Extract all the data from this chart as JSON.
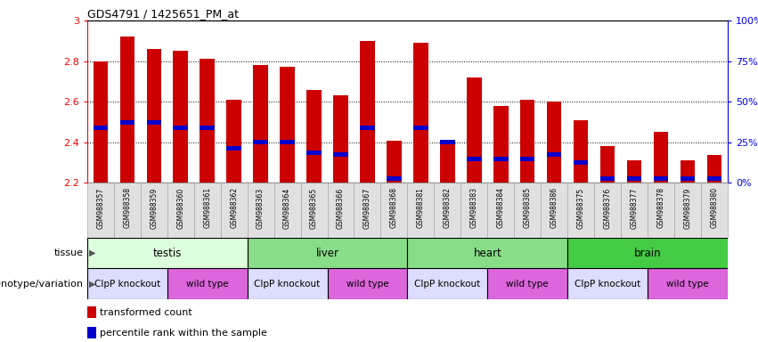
{
  "title": "GDS4791 / 1425651_PM_at",
  "samples": [
    "GSM988357",
    "GSM988358",
    "GSM988359",
    "GSM988360",
    "GSM988361",
    "GSM988362",
    "GSM988363",
    "GSM988364",
    "GSM988365",
    "GSM988366",
    "GSM988367",
    "GSM988368",
    "GSM988381",
    "GSM988382",
    "GSM988383",
    "GSM988384",
    "GSM988385",
    "GSM988386",
    "GSM988375",
    "GSM988376",
    "GSM988377",
    "GSM988378",
    "GSM988379",
    "GSM988380"
  ],
  "bar_values": [
    2.8,
    2.92,
    2.86,
    2.85,
    2.81,
    2.61,
    2.78,
    2.77,
    2.66,
    2.63,
    2.9,
    2.41,
    2.89,
    2.4,
    2.72,
    2.58,
    2.61,
    2.6,
    2.51,
    2.38,
    2.31,
    2.45,
    2.31,
    2.34
  ],
  "blue_values": [
    2.47,
    2.5,
    2.5,
    2.47,
    2.47,
    2.37,
    2.4,
    2.4,
    2.35,
    2.34,
    2.47,
    2.22,
    2.47,
    2.4,
    2.32,
    2.32,
    2.32,
    2.34,
    2.3,
    2.22,
    2.22,
    2.22,
    2.22,
    2.22
  ],
  "ymin": 2.2,
  "ymax": 3.0,
  "bar_color": "#cc0000",
  "blue_color": "#0000cc",
  "tissue_data": [
    {
      "start": 0,
      "end": 5,
      "label": "testis",
      "color": "#ddffdd"
    },
    {
      "start": 6,
      "end": 11,
      "label": "liver",
      "color": "#88dd88"
    },
    {
      "start": 12,
      "end": 17,
      "label": "heart",
      "color": "#88dd88"
    },
    {
      "start": 18,
      "end": 23,
      "label": "brain",
      "color": "#44cc44"
    }
  ],
  "geno_data": [
    {
      "start": 0,
      "end": 2,
      "label": "ClpP knockout",
      "color": "#ddddff"
    },
    {
      "start": 3,
      "end": 5,
      "label": "wild type",
      "color": "#dd66dd"
    },
    {
      "start": 6,
      "end": 8,
      "label": "ClpP knockout",
      "color": "#ddddff"
    },
    {
      "start": 9,
      "end": 11,
      "label": "wild type",
      "color": "#dd66dd"
    },
    {
      "start": 12,
      "end": 14,
      "label": "ClpP knockout",
      "color": "#ddddff"
    },
    {
      "start": 15,
      "end": 17,
      "label": "wild type",
      "color": "#dd66dd"
    },
    {
      "start": 18,
      "end": 20,
      "label": "ClpP knockout",
      "color": "#ddddff"
    },
    {
      "start": 21,
      "end": 23,
      "label": "wild type",
      "color": "#dd66dd"
    }
  ],
  "right_yticks": [
    0,
    25,
    50,
    75,
    100
  ],
  "right_yticklabels": [
    "0%",
    "25%",
    "50%",
    "75%",
    "100%"
  ],
  "gridlines": [
    2.4,
    2.6,
    2.8
  ],
  "bar_width": 0.55
}
